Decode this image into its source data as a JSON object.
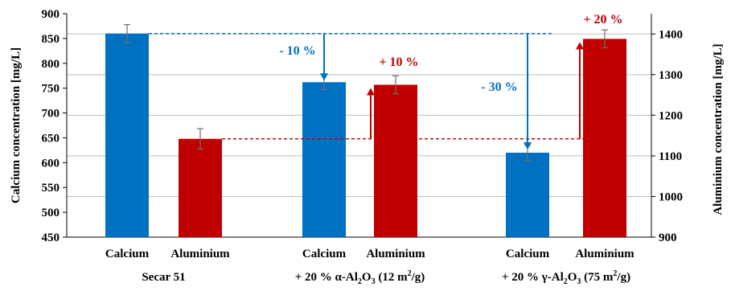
{
  "chart_data": {
    "type": "bar",
    "left_axis": {
      "label": "Calcium concentration [mg/L]",
      "range": [
        450,
        900
      ],
      "ticks": [
        "450",
        "500",
        "550",
        "600",
        "650",
        "700",
        "750",
        "800",
        "850",
        "900"
      ]
    },
    "right_axis": {
      "label": "Aluminium concentration [mg/L]",
      "range": [
        900,
        1450
      ],
      "ticks": [
        "900",
        "1000",
        "1100",
        "1200",
        "1300",
        "1400"
      ]
    },
    "grid": "horizontal, right-axis ticks",
    "groups": [
      {
        "label_parts": [
          "Secar 51"
        ],
        "bars": [
          {
            "label": "Calcium",
            "series": "Calcium",
            "axis": "left",
            "value": 860,
            "error": 18
          },
          {
            "label": "Aluminium",
            "series": "Aluminium",
            "axis": "right",
            "value": 1142,
            "error": 25
          }
        ]
      },
      {
        "label_parts": [
          "+ 20 % α-Al",
          "2",
          "O",
          "3",
          " (12 m",
          "2",
          "/g)"
        ],
        "bars": [
          {
            "label": "Calcium",
            "series": "Calcium",
            "axis": "left",
            "value": 762,
            "error": 15
          },
          {
            "label": "Aluminium",
            "series": "Aluminium",
            "axis": "right",
            "value": 1275,
            "error": 22
          }
        ]
      },
      {
        "label_parts": [
          "+ 20 % γ-Al",
          "2",
          "O",
          "3",
          " (75 m",
          "2",
          "/g)"
        ],
        "bars": [
          {
            "label": "Calcium",
            "series": "Calcium",
            "axis": "left",
            "value": 620,
            "error": 16
          },
          {
            "label": "Aluminium",
            "series": "Aluminium",
            "axis": "right",
            "value": 1388,
            "error": 22
          }
        ]
      }
    ],
    "annotations": [
      {
        "text": "- 10 %",
        "series": "Calcium"
      },
      {
        "text": "- 30 %",
        "series": "Calcium"
      },
      {
        "text": "+ 10 %",
        "series": "Aluminium"
      },
      {
        "text": "+ 20 %",
        "series": "Aluminium"
      }
    ],
    "colors": {
      "Calcium": "#0070c0",
      "Aluminium": "#c00000",
      "error_bar": "#707070",
      "grid": "#bfbfbf"
    }
  }
}
